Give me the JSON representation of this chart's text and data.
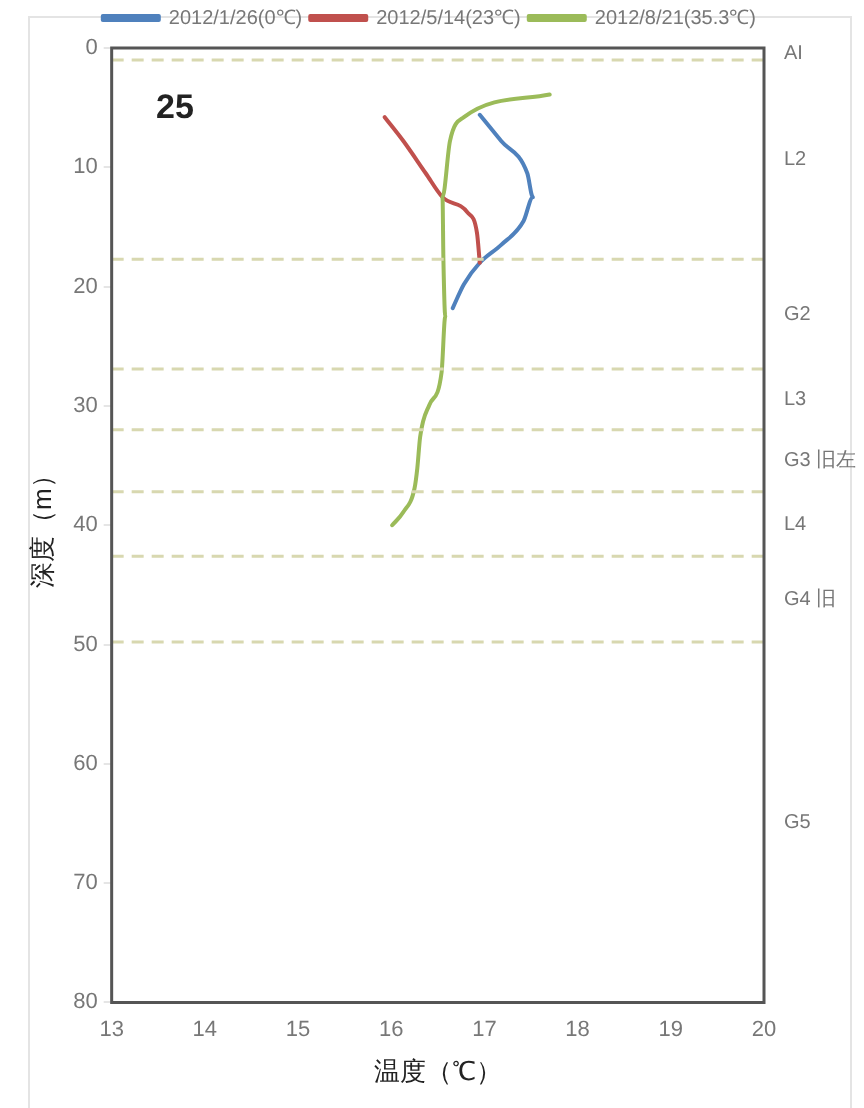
{
  "chart_data": {
    "type": "line",
    "title": "25",
    "xlabel": "温度（℃）",
    "ylabel": "深度（m）",
    "xlim": [
      13,
      20
    ],
    "xticks": [
      13,
      14,
      15,
      16,
      17,
      18,
      19,
      20
    ],
    "ylim": [
      80,
      0
    ],
    "yticks": [
      0,
      10,
      20,
      30,
      40,
      50,
      60,
      70,
      80
    ],
    "grid": false,
    "legend": "top right",
    "marker": "none",
    "line_style": "solid",
    "series": [
      {
        "name": "2012/1/26(0℃)",
        "color": "#4f81bd",
        "x": [
          16.95,
          17.18,
          17.46,
          17.52,
          17.42,
          17.18,
          16.95,
          16.78,
          16.66
        ],
        "values": [
          5.6,
          7.8,
          10.5,
          12.5,
          14.5,
          16.5,
          18,
          19.8,
          21.8
        ]
      },
      {
        "name": "2012/5/14(23℃)",
        "color": "#c0504d",
        "x": [
          15.93,
          16.13,
          16.37,
          16.55,
          16.82,
          16.92,
          16.95
        ],
        "values": [
          5.8,
          7.8,
          10.5,
          12.5,
          13.8,
          15.5,
          18
        ]
      },
      {
        "name": "2012/8/21(35.3℃)",
        "color": "#9bbb59",
        "x": [
          17.7,
          16.78,
          16.63,
          16.55,
          16.56,
          16.58,
          16.54,
          16.41,
          16.31,
          16.28,
          16.25,
          16.13,
          16.01
        ],
        "values": [
          3.9,
          5.8,
          7.8,
          12.5,
          17.8,
          22.5,
          27.2,
          29.9,
          32.6,
          35.2,
          36.9,
          38.9,
          40
        ]
      }
    ],
    "ref_lines": [
      {
        "axis": "y",
        "value": 1,
        "color": "#d8d8b0",
        "line_style": "dashed"
      },
      {
        "axis": "y",
        "value": 17.7,
        "color": "#d8d8b0",
        "line_style": "dashed"
      },
      {
        "axis": "y",
        "value": 26.9,
        "color": "#d8d8b0",
        "line_style": "dashed"
      },
      {
        "axis": "y",
        "value": 32,
        "color": "#d8d8b0",
        "line_style": "dashed"
      },
      {
        "axis": "y",
        "value": 37.2,
        "color": "#d8d8b0",
        "line_style": "dashed"
      },
      {
        "axis": "y",
        "value": 42.6,
        "color": "#d8d8b0",
        "line_style": "dashed"
      },
      {
        "axis": "y",
        "value": 49.8,
        "color": "#d8d8b0",
        "line_style": "dashed"
      }
    ],
    "annotations": [
      "AI",
      "L2",
      "G2",
      "L3",
      "G3 旧左",
      "L4",
      "G4 旧",
      "G5"
    ]
  }
}
